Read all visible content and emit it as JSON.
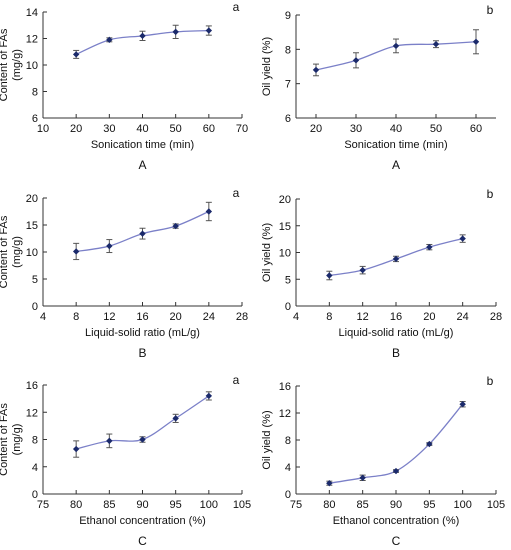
{
  "chart_data": [
    {
      "type": "line",
      "panel_letter": "a",
      "caption": "A",
      "xlabel": "Sonication time (min)",
      "ylabel": [
        "Content of FAs",
        "(mg/g)"
      ],
      "xlim": [
        10,
        70
      ],
      "ylim": [
        6,
        14
      ],
      "xticks": [
        10,
        20,
        30,
        40,
        50,
        60,
        70
      ],
      "yticks": [
        6,
        8,
        10,
        12,
        14
      ],
      "series": [
        {
          "x": [
            20,
            30,
            40,
            50,
            60
          ],
          "y": [
            10.8,
            11.9,
            12.2,
            12.5,
            12.6
          ],
          "err": [
            0.3,
            0.15,
            0.35,
            0.5,
            0.35
          ]
        }
      ]
    },
    {
      "type": "line",
      "panel_letter": "b",
      "caption": "A",
      "xlabel": "Sonication time (min)",
      "ylabel": [
        "Oil yield (%)"
      ],
      "xlim": [
        15,
        65
      ],
      "ylim": [
        6,
        9
      ],
      "xticks": [
        20,
        30,
        40,
        50,
        60
      ],
      "yticks": [
        6,
        7,
        8,
        9
      ],
      "series": [
        {
          "x": [
            20,
            30,
            40,
            50,
            60
          ],
          "y": [
            7.4,
            7.68,
            8.1,
            8.15,
            8.22
          ],
          "err": [
            0.17,
            0.22,
            0.2,
            0.1,
            0.35
          ]
        }
      ]
    },
    {
      "type": "line",
      "panel_letter": "a",
      "caption": "B",
      "xlabel": "Liquid-solid ratio (mL/g)",
      "ylabel": [
        "Content of FAs",
        "(mg/g)"
      ],
      "xlim": [
        4,
        28
      ],
      "ylim": [
        0,
        20
      ],
      "xticks": [
        4,
        8,
        12,
        16,
        20,
        24,
        28
      ],
      "yticks": [
        0,
        5,
        10,
        15,
        20
      ],
      "series": [
        {
          "x": [
            8,
            12,
            16,
            20,
            24
          ],
          "y": [
            10.1,
            11.1,
            13.4,
            14.8,
            17.5
          ],
          "err": [
            1.5,
            1.2,
            1.0,
            0.4,
            1.7
          ]
        }
      ]
    },
    {
      "type": "line",
      "panel_letter": "b",
      "caption": "B",
      "xlabel": "Liquid-solid ratio (mL/g)",
      "ylabel": [
        "Oil yield (%)"
      ],
      "xlim": [
        4,
        28
      ],
      "ylim": [
        0,
        20
      ],
      "xticks": [
        4,
        8,
        12,
        16,
        20,
        24,
        28
      ],
      "yticks": [
        0,
        5,
        10,
        15,
        20
      ],
      "series": [
        {
          "x": [
            8,
            12,
            16,
            20,
            24
          ],
          "y": [
            5.7,
            6.7,
            8.8,
            11.0,
            12.6
          ],
          "err": [
            0.8,
            0.7,
            0.5,
            0.5,
            0.7
          ]
        }
      ]
    },
    {
      "type": "line",
      "panel_letter": "a",
      "caption": "C",
      "xlabel": "Ethanol concentration (%)",
      "ylabel": [
        "Content of FAs",
        "(mg/g)"
      ],
      "xlim": [
        75,
        105
      ],
      "ylim": [
        0,
        16
      ],
      "xticks": [
        75,
        80,
        85,
        90,
        95,
        100,
        105
      ],
      "yticks": [
        0,
        4,
        8,
        12,
        16
      ],
      "series": [
        {
          "x": [
            80,
            85,
            90,
            95,
            100
          ],
          "y": [
            6.6,
            7.8,
            8.0,
            11.1,
            14.4
          ],
          "err": [
            1.2,
            1.0,
            0.4,
            0.6,
            0.6
          ]
        }
      ]
    },
    {
      "type": "line",
      "panel_letter": "b",
      "caption": "C",
      "xlabel": "Ethanol concentration (%)",
      "ylabel": [
        "Oil yield (%)"
      ],
      "xlim": [
        75,
        105
      ],
      "ylim": [
        0,
        16
      ],
      "xticks": [
        75,
        80,
        85,
        90,
        95,
        100,
        105
      ],
      "yticks": [
        0,
        4,
        8,
        12,
        16
      ],
      "series": [
        {
          "x": [
            80,
            85,
            90,
            95,
            100
          ],
          "y": [
            1.6,
            2.4,
            3.4,
            7.4,
            13.3
          ],
          "err": [
            0.3,
            0.4,
            0.2,
            0.2,
            0.4
          ]
        }
      ]
    }
  ],
  "style": {
    "line_color": "#7b80c8",
    "marker_color": "#1b2a6b",
    "errorbar_color": "#555555",
    "axis_color": "#333333"
  }
}
